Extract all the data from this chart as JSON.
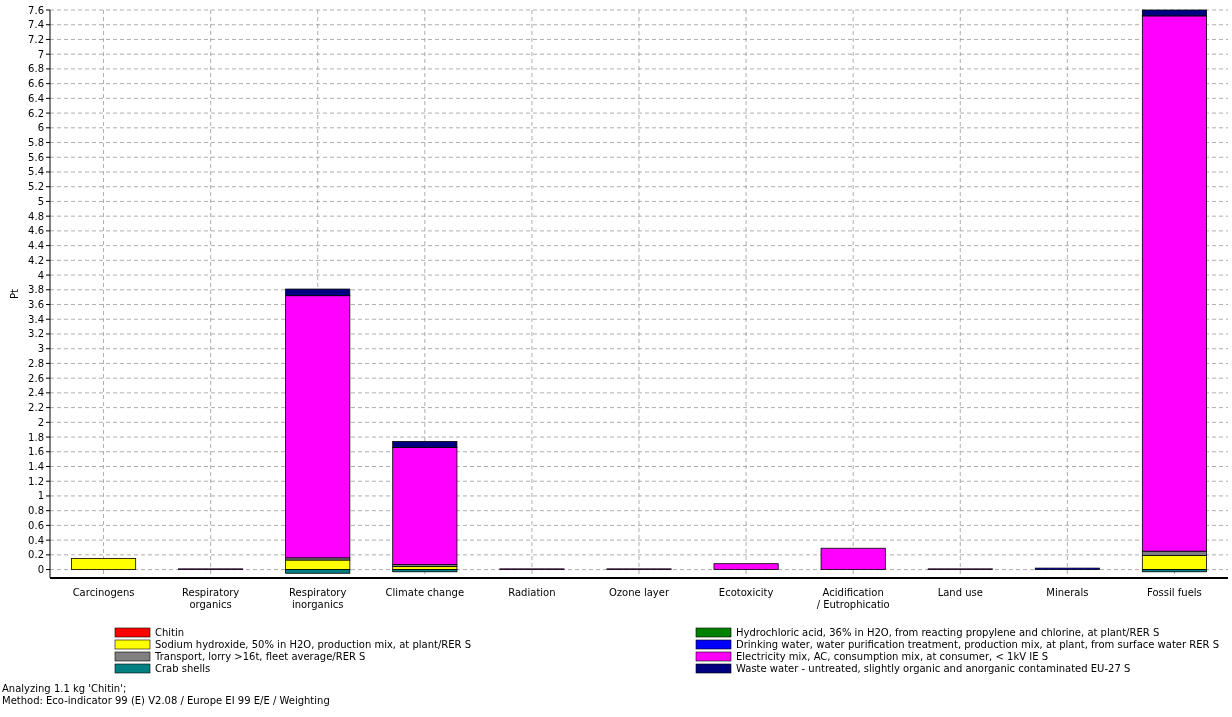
{
  "chart_data": {
    "type": "bar",
    "stacked": true,
    "ylabel": "Pt",
    "categories": [
      "Carcinogens",
      "Respiratory organics",
      "Respiratory inorganics",
      "Climate change",
      "Radiation",
      "Ozone layer",
      "Ecotoxicity",
      "Acidification / Eutrophicatio",
      "Land use",
      "Minerals",
      "Fossil fuels"
    ],
    "series": [
      {
        "name": "Chitin",
        "color": "#ff0000",
        "values": [
          0,
          0,
          0,
          0,
          0,
          0,
          0,
          0,
          0,
          0,
          0
        ]
      },
      {
        "name": "Sodium hydroxide, 50% in H2O, production mix, at plant/RER S",
        "color": "#ffff00",
        "values": [
          0.15,
          0,
          0.13,
          0.04,
          0,
          0,
          0,
          0,
          0,
          0,
          0.19
        ]
      },
      {
        "name": "Transport, lorry >16t, fleet average/RER S",
        "color": "#808080",
        "values": [
          0,
          0,
          0.03,
          0.03,
          0,
          0,
          null,
          null,
          0,
          0,
          0.06
        ]
      },
      {
        "name": "Crab shells",
        "color": "#008080",
        "values": [
          0,
          0,
          -0.05,
          -0.03,
          0,
          0,
          0,
          0,
          0,
          0,
          -0.03
        ]
      },
      {
        "name": "Hydrochloric acid, 36% in H2O, from reacting propylene and chlorine, at plant/RER S",
        "color": "#008000",
        "values": [
          0,
          0,
          0,
          0,
          0,
          0,
          0,
          0,
          0,
          0,
          0
        ]
      },
      {
        "name": "Drinking water, water purification treatment, production mix, at plant, from surface water RER S",
        "color": "#0000ff",
        "values": [
          0,
          0,
          0,
          0,
          0,
          0,
          0,
          0,
          0,
          0.02,
          0
        ]
      },
      {
        "name": "Electricity mix, AC, consumption mix, at consumer, < 1kV IE S",
        "color": "#ff00ff",
        "values": [
          0,
          0.01,
          3.56,
          1.59,
          0.01,
          0.01,
          0.08,
          0.29,
          0.01,
          0,
          7.27
        ]
      },
      {
        "name": "Waste water - untreated, slightly organic and anorganic contaminated EU-27 S",
        "color": "#000080",
        "values": [
          0,
          0,
          0.09,
          0.08,
          0,
          0,
          0,
          0,
          0,
          0,
          0.08
        ]
      }
    ],
    "ylim": [
      -0.06,
      7.6
    ],
    "yticks": [
      0,
      0.2,
      0.4,
      0.6,
      0.8,
      1,
      1.2,
      1.4,
      1.6,
      1.8,
      2,
      2.2,
      2.4,
      2.6,
      2.8,
      3,
      3.2,
      3.4,
      3.6,
      3.8,
      4,
      4.2,
      4.4,
      4.6,
      4.8,
      5,
      5.2,
      5.4,
      5.6,
      5.8,
      6,
      6.2,
      6.4,
      6.6,
      6.8,
      7,
      7.2,
      7.4,
      7.6
    ],
    "grid": true,
    "legend": "bottom",
    "annotations": [
      "Analyzing 1.1 kg 'Chitin';",
      "Method: Eco-indicator 99 (E) V2.08 / Europe EI 99 E/E / Weighting"
    ]
  }
}
